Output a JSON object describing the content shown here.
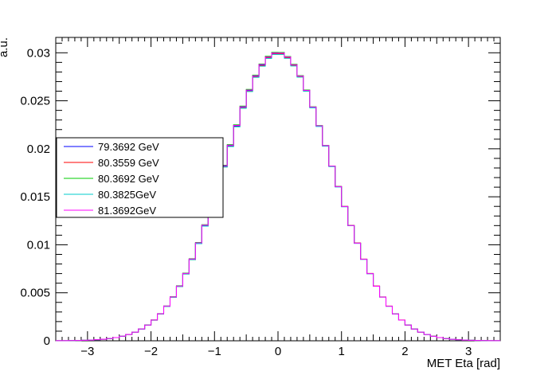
{
  "chart_data": {
    "type": "line",
    "xlabel": "MET Eta [rad]",
    "ylabel": "a.u.",
    "xlim": [
      -3.5,
      3.5
    ],
    "ylim": [
      0,
      0.0316
    ],
    "x_ticks": [
      -3,
      -2,
      -1,
      0,
      1,
      2,
      3
    ],
    "x_tick_labels": [
      "−3",
      "−2",
      "−1",
      "0",
      "1",
      "2",
      "3"
    ],
    "y_ticks": [
      0,
      0.005,
      0.01,
      0.015,
      0.02,
      0.025,
      0.03
    ],
    "y_tick_labels": [
      "0",
      "0.005",
      "0.01",
      "0.015",
      "0.02",
      "0.025",
      "0.03"
    ],
    "bins": 70,
    "bin_width": 0.1,
    "peak_value": 0.03,
    "peak_x": 0.0,
    "sigma": 0.85,
    "legend_position": "left",
    "series": [
      {
        "name": "79.3692 GeV",
        "color": "#0000ff",
        "scale": 1.0,
        "shift": 0.0
      },
      {
        "name": "80.3559 GeV",
        "color": "#ff0000",
        "scale": 0.998,
        "shift": 0.002
      },
      {
        "name": "80.3692 GeV",
        "color": "#00cc00",
        "scale": 1.003,
        "shift": -0.002
      },
      {
        "name": "80.3825GeV",
        "color": "#00cccc",
        "scale": 0.996,
        "shift": 0.001
      },
      {
        "name": "81.3692GeV",
        "color": "#ff00ff",
        "scale": 1.001,
        "shift": -0.001
      }
    ]
  }
}
